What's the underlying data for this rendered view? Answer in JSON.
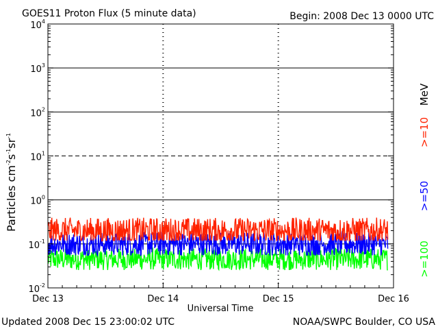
{
  "header": {
    "title": "GOES11 Proton Flux (5 minute data)",
    "begin": "Begin: 2008 Dec 13 0000 UTC"
  },
  "footer": {
    "updated": "Updated 2008 Dec 15 23:00:02 UTC",
    "credit": "NOAA/SWPC Boulder, CO USA"
  },
  "chart_data": {
    "type": "line",
    "title": "GOES11 Proton Flux (5 minute data)",
    "xlabel": "Universal Time",
    "ylabel": {
      "main": "Particles cm",
      "e1": "-2",
      "s": "s",
      "e2": "-1",
      "sr": "sr",
      "e3": "-1"
    },
    "yscale": "log",
    "ylim": [
      0.01,
      10000
    ],
    "y_ticks": [
      {
        "base": "10",
        "exp": "-2",
        "value": 0.01
      },
      {
        "base": "10",
        "exp": "-1",
        "value": 0.1
      },
      {
        "base": "10",
        "exp": "0",
        "value": 1
      },
      {
        "base": "10",
        "exp": "1",
        "value": 10
      },
      {
        "base": "10",
        "exp": "2",
        "value": 100
      },
      {
        "base": "10",
        "exp": "3",
        "value": 1000
      },
      {
        "base": "10",
        "exp": "4",
        "value": 10000
      }
    ],
    "x_ticks": [
      "Dec 13",
      "Dec 14",
      "Dec 15",
      "Dec 16"
    ],
    "xlim_days": [
      0,
      3
    ],
    "threshold_lines": [
      {
        "value": 0.1,
        "style": "solid"
      },
      {
        "value": 1,
        "style": "solid"
      },
      {
        "value": 10,
        "style": "dashed"
      },
      {
        "value": 100,
        "style": "solid"
      },
      {
        "value": 1000,
        "style": "solid"
      }
    ],
    "legend_unit": "MeV",
    "legend_placement": "right",
    "series": [
      {
        "name": ">=10",
        "color": "#ff2200",
        "baseline": 0.2,
        "min": 0.12,
        "max": 0.55,
        "x_end": 2.95
      },
      {
        "name": ">=50",
        "color": "#0000ff",
        "baseline": 0.1,
        "min": 0.055,
        "max": 0.22,
        "x_end": 2.95
      },
      {
        "name": ">=100",
        "color": "#00ff00",
        "baseline": 0.045,
        "min": 0.025,
        "max": 0.09,
        "x_end": 2.95
      }
    ]
  }
}
